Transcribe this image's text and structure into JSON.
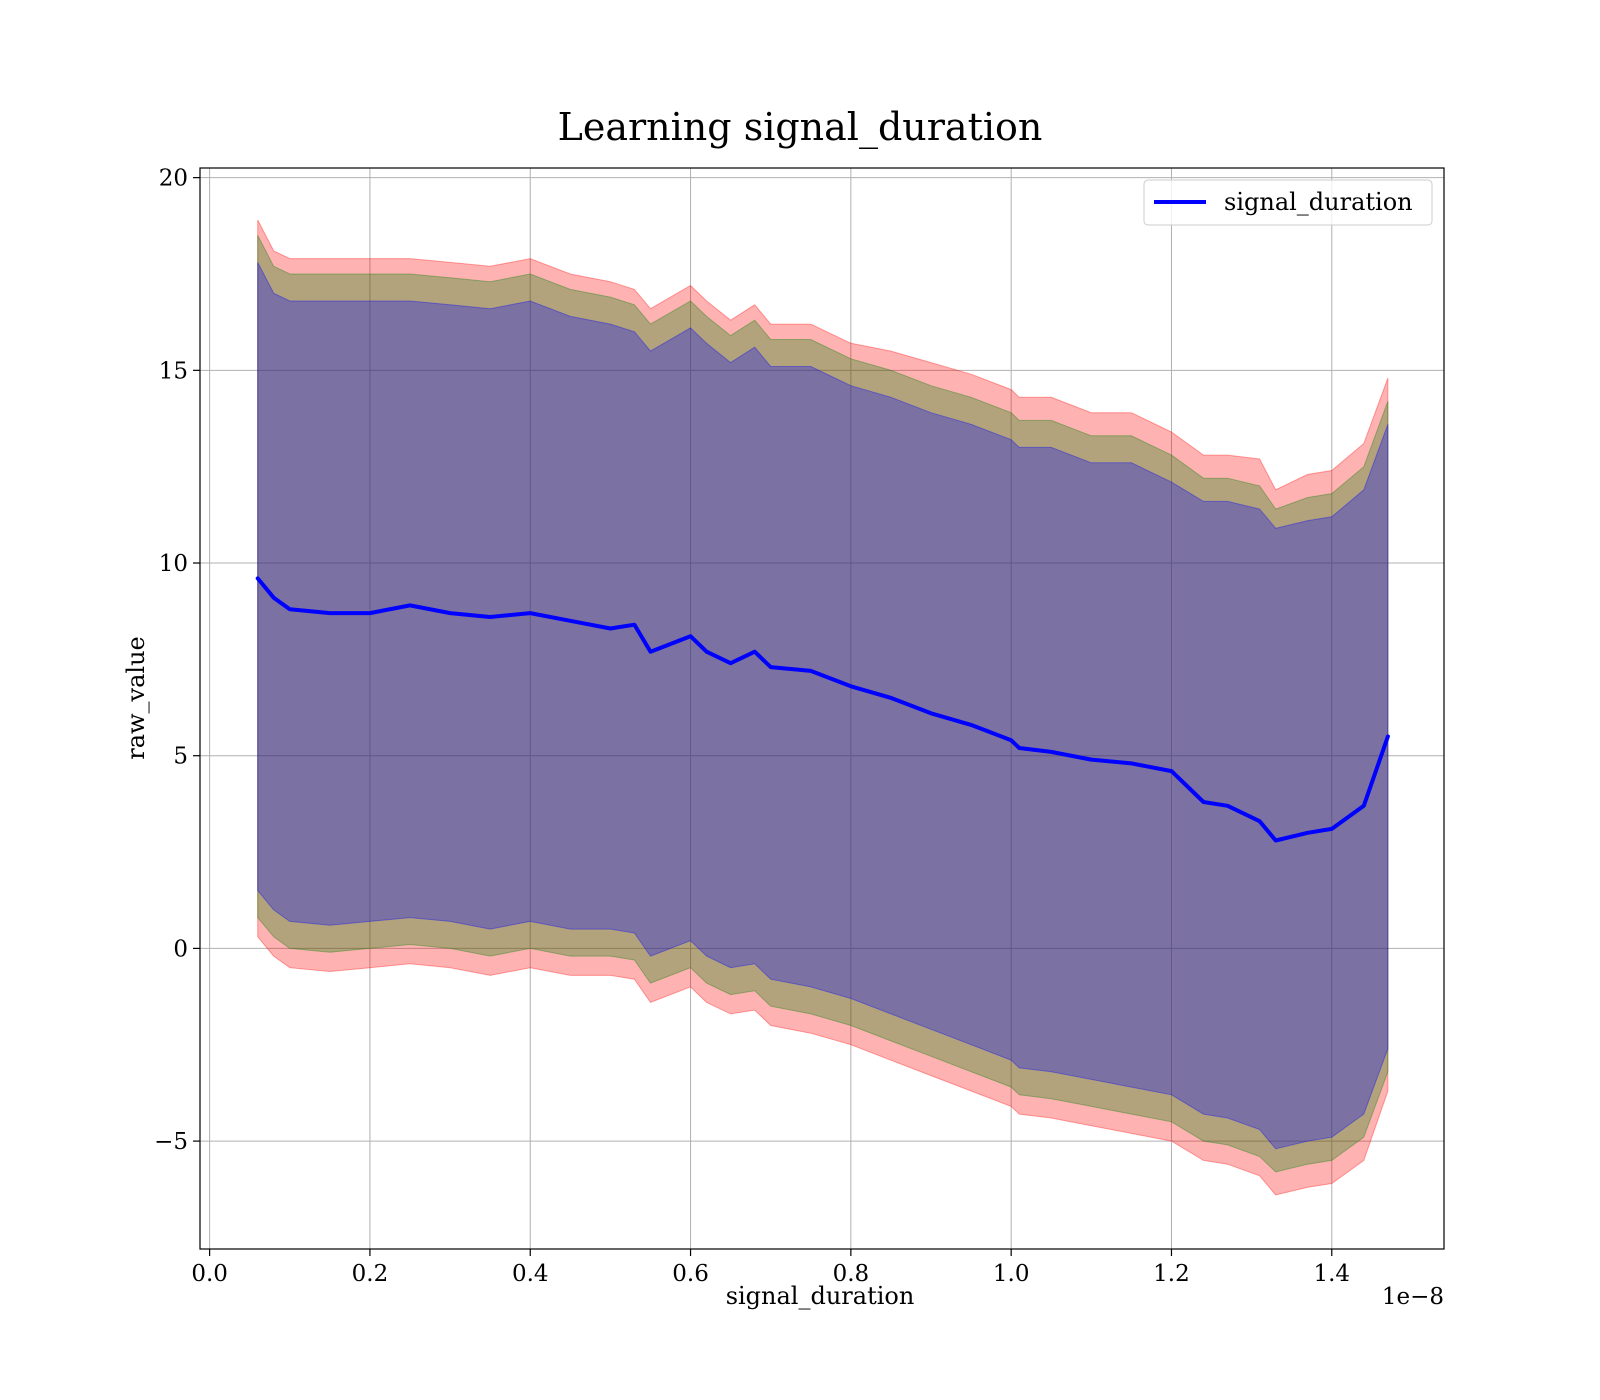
{
  "chart_data": {
    "type": "area",
    "title": "Learning signal_duration",
    "xlabel": "signal_duration",
    "ylabel": "raw_value",
    "x_offset_label": "1e−8",
    "xlim": [
      -0.012,
      1.54
    ],
    "ylim": [
      -7.8,
      20.25
    ],
    "x_ticks": [
      0.0,
      0.2,
      0.4,
      0.6,
      0.8,
      1.0,
      1.2,
      1.4
    ],
    "x_tick_labels": [
      "0.0",
      "0.2",
      "0.4",
      "0.6",
      "0.8",
      "1.0",
      "1.2",
      "1.4"
    ],
    "y_ticks": [
      -5,
      0,
      5,
      10,
      15,
      20
    ],
    "y_tick_labels": [
      "−5",
      "0",
      "5",
      "10",
      "15",
      "20"
    ],
    "grid": true,
    "legend_position": "top-right",
    "x": [
      0.06,
      0.08,
      0.1,
      0.15,
      0.2,
      0.25,
      0.3,
      0.35,
      0.4,
      0.45,
      0.5,
      0.53,
      0.55,
      0.6,
      0.62,
      0.65,
      0.68,
      0.7,
      0.75,
      0.8,
      0.85,
      0.9,
      0.95,
      1.0,
      1.01,
      1.05,
      1.1,
      1.15,
      1.2,
      1.24,
      1.27,
      1.31,
      1.33,
      1.37,
      1.4,
      1.44,
      1.47
    ],
    "series": [
      {
        "name": "signal_duration",
        "color": "#0000ff",
        "values": [
          9.6,
          9.1,
          8.8,
          8.7,
          8.7,
          8.9,
          8.7,
          8.6,
          8.7,
          8.5,
          8.3,
          8.4,
          7.7,
          8.1,
          7.7,
          7.4,
          7.7,
          7.3,
          7.2,
          6.8,
          6.5,
          6.1,
          5.8,
          5.4,
          5.2,
          5.1,
          4.9,
          4.8,
          4.6,
          3.8,
          3.7,
          3.3,
          2.8,
          3.0,
          3.1,
          3.7,
          5.5
        ]
      }
    ],
    "bands": [
      {
        "color": "#ff0000",
        "upper": [
          18.9,
          18.1,
          17.9,
          17.9,
          17.9,
          17.9,
          17.8,
          17.7,
          17.9,
          17.5,
          17.3,
          17.1,
          16.6,
          17.2,
          16.8,
          16.3,
          16.7,
          16.2,
          16.2,
          15.7,
          15.5,
          15.2,
          14.9,
          14.5,
          14.3,
          14.3,
          13.9,
          13.9,
          13.4,
          12.8,
          12.8,
          12.7,
          11.9,
          12.3,
          12.4,
          13.1,
          14.8
        ],
        "lower": [
          0.3,
          -0.2,
          -0.5,
          -0.6,
          -0.5,
          -0.4,
          -0.5,
          -0.7,
          -0.5,
          -0.7,
          -0.7,
          -0.8,
          -1.4,
          -1.0,
          -1.4,
          -1.7,
          -1.6,
          -2.0,
          -2.2,
          -2.5,
          -2.9,
          -3.3,
          -3.7,
          -4.1,
          -4.3,
          -4.4,
          -4.6,
          -4.8,
          -5.0,
          -5.5,
          -5.6,
          -5.9,
          -6.4,
          -6.2,
          -6.1,
          -5.5,
          -3.7
        ]
      },
      {
        "color": "#008000",
        "upper": [
          18.5,
          17.7,
          17.5,
          17.5,
          17.5,
          17.5,
          17.4,
          17.3,
          17.5,
          17.1,
          16.9,
          16.7,
          16.2,
          16.8,
          16.4,
          15.9,
          16.3,
          15.8,
          15.8,
          15.3,
          15.0,
          14.6,
          14.3,
          13.9,
          13.7,
          13.7,
          13.3,
          13.3,
          12.8,
          12.2,
          12.2,
          12.0,
          11.4,
          11.7,
          11.8,
          12.5,
          14.2
        ],
        "lower": [
          0.8,
          0.3,
          0.0,
          -0.1,
          0.0,
          0.1,
          0.0,
          -0.2,
          0.0,
          -0.2,
          -0.2,
          -0.3,
          -0.9,
          -0.5,
          -0.9,
          -1.2,
          -1.1,
          -1.5,
          -1.7,
          -2.0,
          -2.4,
          -2.8,
          -3.2,
          -3.6,
          -3.8,
          -3.9,
          -4.1,
          -4.3,
          -4.5,
          -5.0,
          -5.1,
          -5.4,
          -5.8,
          -5.6,
          -5.5,
          -4.9,
          -3.2
        ]
      },
      {
        "color": "#0000ff",
        "upper": [
          17.8,
          17.0,
          16.8,
          16.8,
          16.8,
          16.8,
          16.7,
          16.6,
          16.8,
          16.4,
          16.2,
          16.0,
          15.5,
          16.1,
          15.7,
          15.2,
          15.6,
          15.1,
          15.1,
          14.6,
          14.3,
          13.9,
          13.6,
          13.2,
          13.0,
          13.0,
          12.6,
          12.6,
          12.1,
          11.6,
          11.6,
          11.4,
          10.9,
          11.1,
          11.2,
          11.9,
          13.6
        ],
        "lower": [
          1.5,
          1.0,
          0.7,
          0.6,
          0.7,
          0.8,
          0.7,
          0.5,
          0.7,
          0.5,
          0.5,
          0.4,
          -0.2,
          0.2,
          -0.2,
          -0.5,
          -0.4,
          -0.8,
          -1.0,
          -1.3,
          -1.7,
          -2.1,
          -2.5,
          -2.9,
          -3.1,
          -3.2,
          -3.4,
          -3.6,
          -3.8,
          -4.3,
          -4.4,
          -4.7,
          -5.2,
          -5.0,
          -4.9,
          -4.3,
          -2.6
        ]
      }
    ]
  }
}
